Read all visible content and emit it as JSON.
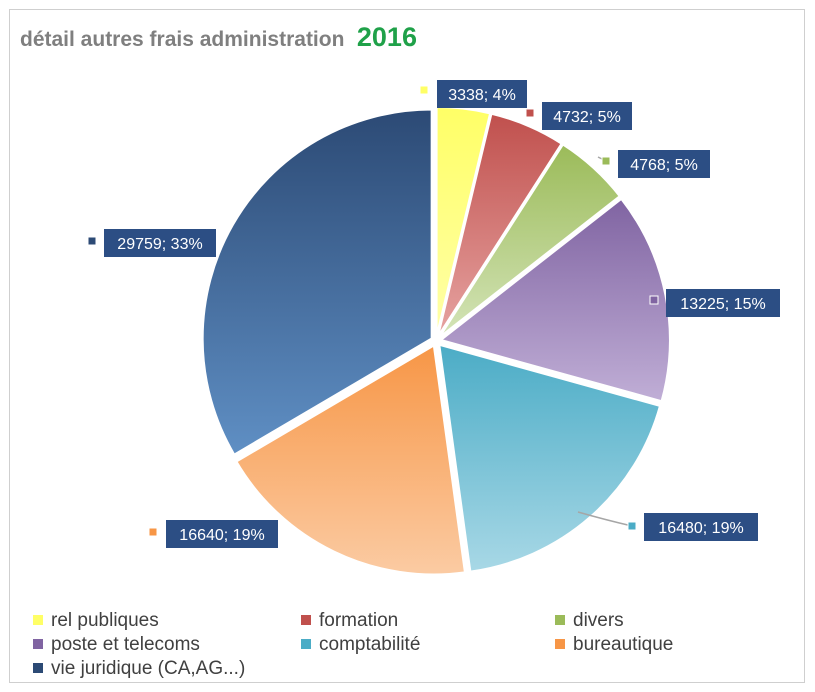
{
  "title": {
    "main": "détail autres frais administration",
    "year": "2016"
  },
  "chart_data": {
    "type": "pie",
    "title": "détail autres frais administration 2016",
    "slices": [
      {
        "name": "rel publiques",
        "value": 3338,
        "percent": "4%",
        "label": "3338; 4%",
        "color": "#ffff66",
        "color_light": "#ffffa8"
      },
      {
        "name": "formation",
        "value": 4732,
        "percent": "5%",
        "label": "4732; 5%",
        "color": "#c0504d",
        "color_light": "#e6a3a1"
      },
      {
        "name": "divers",
        "value": 4768,
        "percent": "5%",
        "label": "4768; 5%",
        "color": "#9bbb59",
        "color_light": "#d4e4b8"
      },
      {
        "name": "poste et telecoms",
        "value": 13225,
        "percent": "15%",
        "label": "13225; 15%",
        "color": "#8064a2",
        "color_light": "#c0aed6"
      },
      {
        "name": "comptabilité",
        "value": 16480,
        "percent": "19%",
        "label": "16480; 19%",
        "color": "#4bacc6",
        "color_light": "#a8d8e6"
      },
      {
        "name": "bureautique",
        "value": 16640,
        "percent": "19%",
        "label": "16640; 19%",
        "color": "#f79646",
        "color_light": "#fbcba3"
      },
      {
        "name": "vie juridique (CA,AG...)",
        "value": 29759,
        "percent": "33%",
        "label": "29759; 33%",
        "color": "#2c4a75",
        "color_light": "#5f8fc4"
      }
    ],
    "legend_position": "bottom",
    "label_box_color": "#2c4e84"
  }
}
